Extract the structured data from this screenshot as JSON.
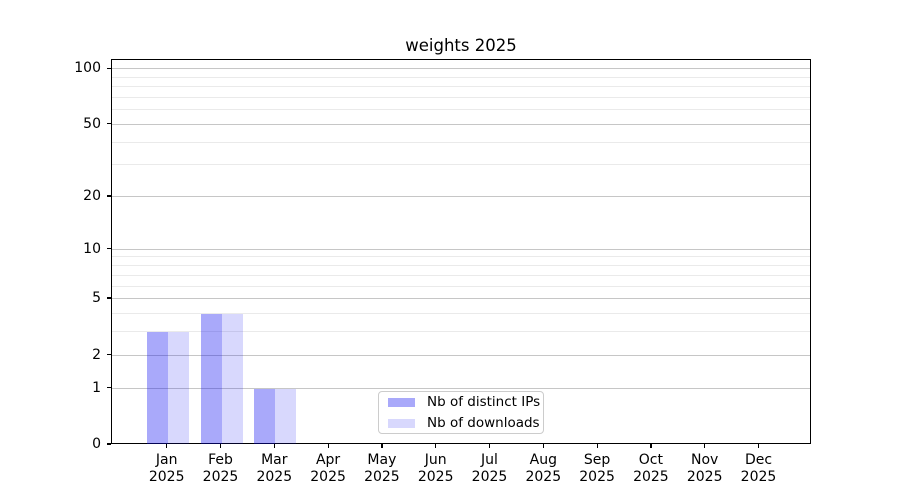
{
  "chart_data": {
    "type": "bar",
    "title": "weights 2025",
    "categories": [
      "Jan 2025",
      "Feb 2025",
      "Mar 2025",
      "Apr 2025",
      "May 2025",
      "Jun 2025",
      "Jul 2025",
      "Aug 2025",
      "Sep 2025",
      "Oct 2025",
      "Nov 2025",
      "Dec 2025"
    ],
    "series": [
      {
        "name": "Nb of distinct IPs",
        "color": "rgba(10,10,240,0.35)",
        "values": [
          3,
          4,
          1,
          0,
          0,
          0,
          0,
          0,
          0,
          0,
          0,
          0
        ]
      },
      {
        "name": "Nb of downloads",
        "color": "rgba(10,10,240,0.16)",
        "values": [
          3,
          4,
          1,
          0,
          0,
          0,
          0,
          0,
          0,
          0,
          0,
          0
        ]
      }
    ],
    "xlabel": "",
    "ylabel": "",
    "yscale": "log1p",
    "ylim": [
      0,
      112
    ],
    "yticks": [
      0,
      1,
      2,
      5,
      10,
      20,
      50,
      100
    ],
    "minor_yticks": [
      3,
      4,
      6,
      7,
      8,
      9,
      30,
      40,
      60,
      70,
      80,
      90
    ],
    "grid": true,
    "legend_position": "lower center",
    "colors": {
      "major_grid": "#c6c6c6",
      "minor_grid": "#eaeaea",
      "axis": "#000000",
      "background": "#ffffff"
    }
  }
}
